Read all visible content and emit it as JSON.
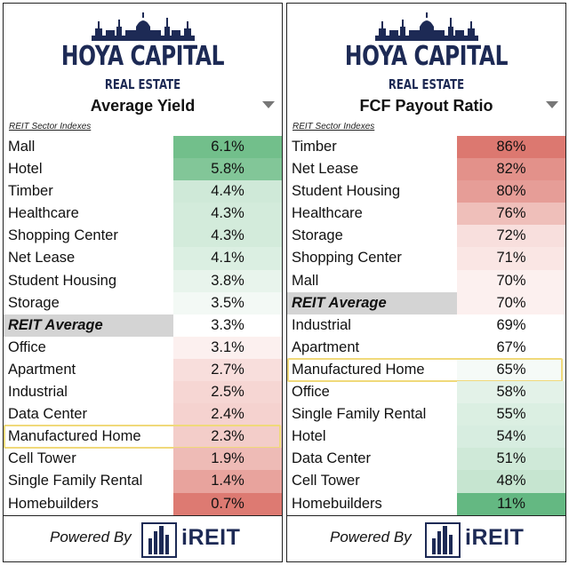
{
  "logo": {
    "main": "HOYA CAPITAL",
    "sub": "REAL ESTATE"
  },
  "footer": {
    "powered_by": "Powered By",
    "brand": "iREIT"
  },
  "colors": {
    "brand_navy": "#1d2a55",
    "highlight": "#f0d97a",
    "green": "#5fb97f",
    "red": "#d96a63",
    "avg_bg": "#d4d4d4"
  },
  "left": {
    "title": "Average Yield",
    "index_label": "REIT Sector Indexes",
    "rows": [
      {
        "name": "Mall",
        "value": "6.1%",
        "bg": "#72bf8b"
      },
      {
        "name": "Hotel",
        "value": "5.8%",
        "bg": "#82c698"
      },
      {
        "name": "Timber",
        "value": "4.4%",
        "bg": "#cfe9d8"
      },
      {
        "name": "Healthcare",
        "value": "4.3%",
        "bg": "#d3ebdb"
      },
      {
        "name": "Shopping Center",
        "value": "4.3%",
        "bg": "#d3ebdb"
      },
      {
        "name": "Net Lease",
        "value": "4.1%",
        "bg": "#dbefe2"
      },
      {
        "name": "Student Housing",
        "value": "3.8%",
        "bg": "#e8f4ec"
      },
      {
        "name": "Storage",
        "value": "3.5%",
        "bg": "#f3f9f5"
      },
      {
        "name": "REIT Average",
        "value": "3.3%",
        "bg": "#ffffff",
        "avg": true
      },
      {
        "name": "Office",
        "value": "3.1%",
        "bg": "#fcf0ef"
      },
      {
        "name": "Apartment",
        "value": "2.7%",
        "bg": "#f8dedc"
      },
      {
        "name": "Industrial",
        "value": "2.5%",
        "bg": "#f6d6d3"
      },
      {
        "name": "Data Center",
        "value": "2.4%",
        "bg": "#f5d2cf"
      },
      {
        "name": "Manufactured Home",
        "value": "2.3%",
        "bg": "#f3cdc9",
        "highlight": true
      },
      {
        "name": "Cell Tower",
        "value": "1.9%",
        "bg": "#eebbb6"
      },
      {
        "name": "Single Family Rental",
        "value": "1.4%",
        "bg": "#e8a39d"
      },
      {
        "name": "Homebuilders",
        "value": "0.7%",
        "bg": "#dd7a72"
      }
    ]
  },
  "right": {
    "title": "FCF Payout Ratio",
    "index_label": "REIT Sector Indexes",
    "rows": [
      {
        "name": "Timber",
        "value": "86%",
        "bg": "#dc7870"
      },
      {
        "name": "Net Lease",
        "value": "82%",
        "bg": "#e3918a"
      },
      {
        "name": "Student Housing",
        "value": "80%",
        "bg": "#e69d97"
      },
      {
        "name": "Healthcare",
        "value": "76%",
        "bg": "#efbfba"
      },
      {
        "name": "Storage",
        "value": "72%",
        "bg": "#f8dfdd"
      },
      {
        "name": "Shopping Center",
        "value": "71%",
        "bg": "#fae6e4"
      },
      {
        "name": "Mall",
        "value": "70%",
        "bg": "#fcf0ef"
      },
      {
        "name": "REIT Average",
        "value": "70%",
        "bg": "#fcf0ef",
        "avg": true
      },
      {
        "name": "Industrial",
        "value": "69%",
        "bg": "#ffffff"
      },
      {
        "name": "Apartment",
        "value": "67%",
        "bg": "#ffffff"
      },
      {
        "name": "Manufactured Home",
        "value": "65%",
        "bg": "#f5faf7",
        "highlight": true
      },
      {
        "name": "Office",
        "value": "58%",
        "bg": "#e3f2e8"
      },
      {
        "name": "Single Family Rental",
        "value": "55%",
        "bg": "#dbefe2"
      },
      {
        "name": "Hotel",
        "value": "54%",
        "bg": "#d7ede0"
      },
      {
        "name": "Data Center",
        "value": "51%",
        "bg": "#cfe9d8"
      },
      {
        "name": "Cell Tower",
        "value": "48%",
        "bg": "#c6e5d0"
      },
      {
        "name": "Homebuilders",
        "value": "11%",
        "bg": "#64b882"
      }
    ]
  }
}
